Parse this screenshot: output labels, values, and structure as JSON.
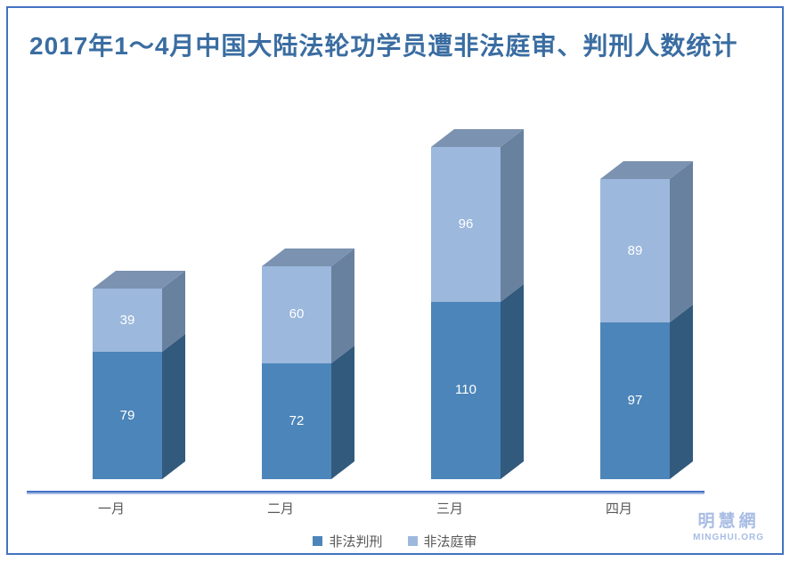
{
  "title": {
    "text": "2017年1～4月中国大陆法轮功学员遭非法庭审、判刑人数统计",
    "color": "#3A6DA1"
  },
  "chart_data": {
    "type": "bar",
    "subtype": "3d-stacked-column",
    "title": "2017年1～4月中国大陆法轮功学员遭非法庭审、判刑人数统计",
    "categories": [
      "一月",
      "二月",
      "三月",
      "四月"
    ],
    "series": [
      {
        "name": "非法判刑",
        "values": [
          79,
          72,
          110,
          97
        ],
        "front_color": "#4C85B9",
        "side_color": "#315A7D"
      },
      {
        "name": "非法庭审",
        "values": [
          39,
          60,
          96,
          89
        ],
        "front_color": "#9CB8DD",
        "side_color": "#68819F"
      }
    ],
    "top_face_color": "#7B92B0",
    "value_labels": "shown-white-centered",
    "value_axis_visible": false,
    "grid": false,
    "legend_position": "bottom",
    "axis_line_color": "#4472C4",
    "category_label_color": "#595959"
  },
  "watermark": {
    "line1": "明慧網",
    "line2": "MINGHUI.ORG",
    "color": "#A8BCE4"
  }
}
